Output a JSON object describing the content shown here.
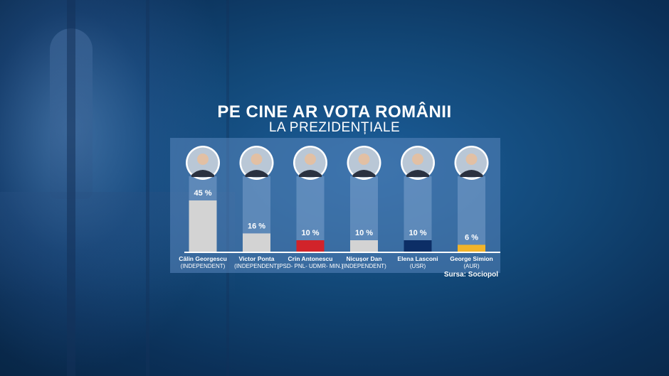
{
  "title_line1": "PE CINE AR VOTA ROMÂNII",
  "title_line2": "LA PREZIDENȚIALE",
  "source": "Sursa: Sociopol",
  "chart_data": {
    "type": "bar",
    "unit": "%",
    "ylim": [
      0,
      45
    ],
    "categories": [
      "Călin Georgescu",
      "Victor Ponta",
      "Crin Antonescu",
      "Nicușor Dan",
      "Elena Lasconi",
      "George Simion"
    ],
    "parties": [
      "(INDEPENDENT)",
      "(INDEPENDENT)",
      "(PSD- PNL- UDMR- MIN.)",
      "(INDEPENDENT)",
      "(USR)",
      "(AUR)"
    ],
    "values": [
      45,
      16,
      10,
      10,
      10,
      6
    ],
    "value_labels": [
      "45 %",
      "16 %",
      "10 %",
      "10 %",
      "10 %",
      "6 %"
    ],
    "bar_colors": [
      "#d3d3d3",
      "#d3d3d3",
      "#d2232a",
      "#d3d3d3",
      "#0c2e66",
      "#f2b42a"
    ],
    "portrait_icons": [
      "portrait-photo",
      "portrait-photo",
      "portrait-photo",
      "portrait-photo",
      "portrait-photo",
      "portrait-photo"
    ]
  }
}
